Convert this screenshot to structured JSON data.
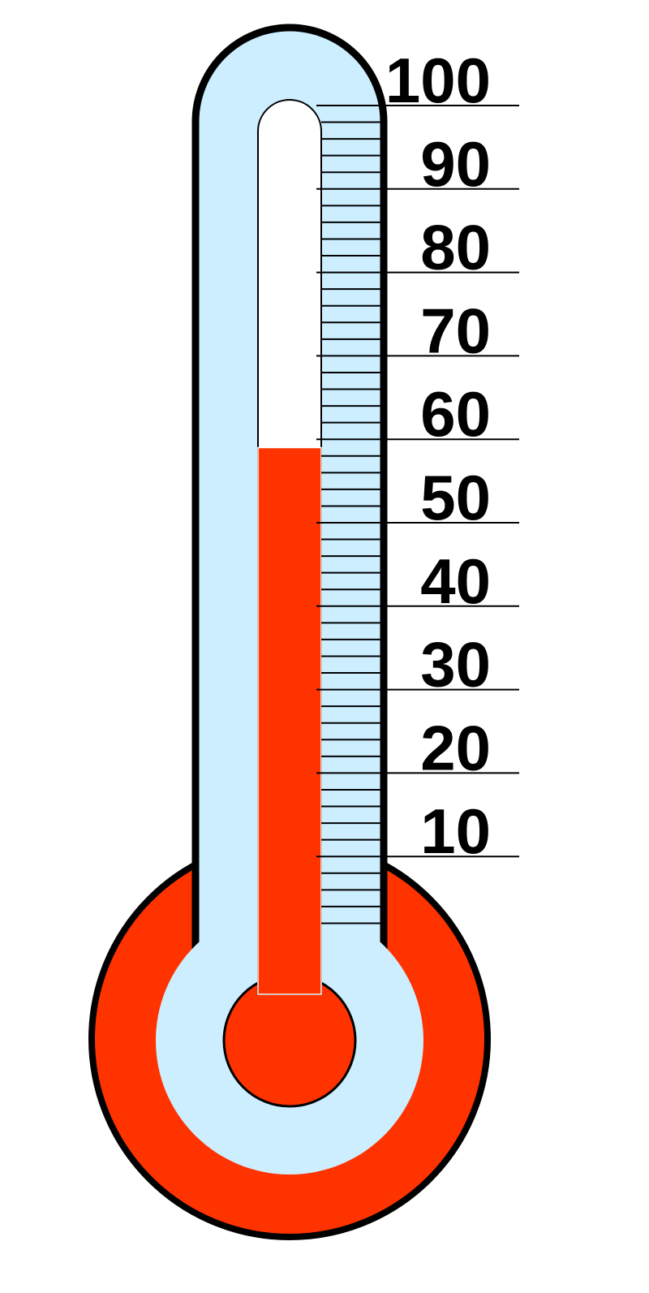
{
  "chart_data": {
    "type": "thermometer",
    "value": 59,
    "color": "#ff3300",
    "ylim": [
      0,
      100
    ],
    "yticks": [
      10,
      20,
      30,
      40,
      50,
      60,
      70,
      80,
      90,
      100
    ],
    "minor_yticks": [
      2,
      4,
      6,
      8,
      12,
      14,
      16,
      18,
      22,
      24,
      26,
      28,
      32,
      34,
      36,
      38,
      42,
      44,
      46,
      48,
      52,
      54,
      56,
      58,
      62,
      64,
      66,
      68,
      72,
      74,
      76,
      78,
      82,
      84,
      86,
      88,
      92,
      94,
      96,
      98
    ]
  }
}
